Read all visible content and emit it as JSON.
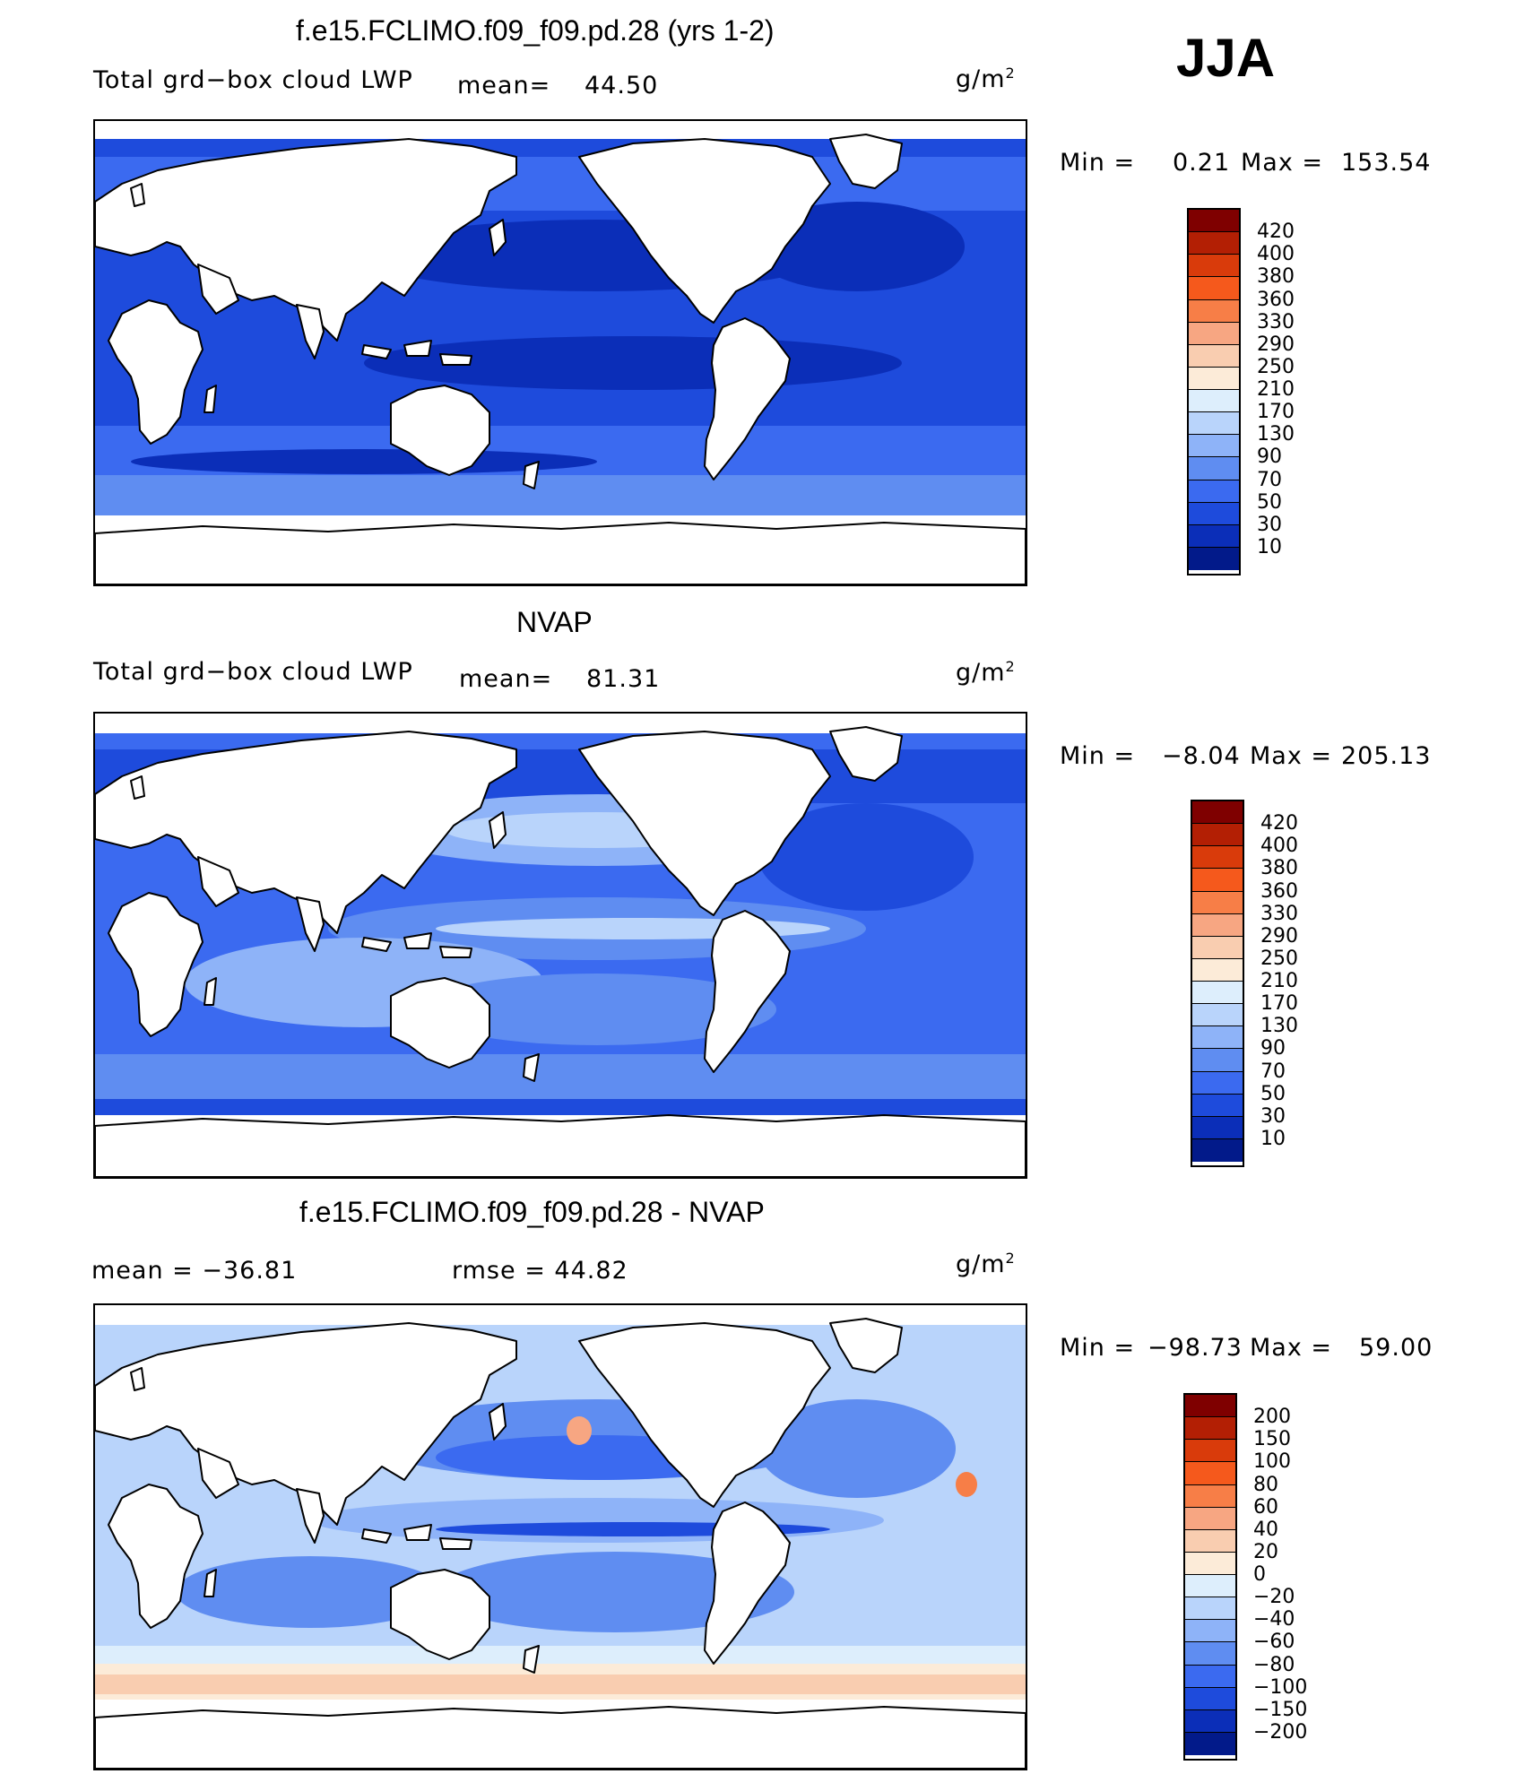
{
  "season": "JJA",
  "panels": [
    {
      "title": "f.e15.FCLIMO.f09_f09.pd.28 (yrs 1-2)",
      "variable": "Total grd−box cloud LWP",
      "mean_label": "mean=",
      "mean_value": "44.50",
      "units": "g/m",
      "units_exp": "2",
      "min_label": "Min =",
      "min_value": "0.21",
      "max_label": "Max =",
      "max_value": "153.54",
      "colorbar": [
        "420",
        "400",
        "380",
        "360",
        "330",
        "290",
        "250",
        "210",
        "170",
        "130",
        "90",
        "70",
        "50",
        "30",
        "10"
      ]
    },
    {
      "title": "NVAP",
      "variable": "Total grd−box cloud LWP",
      "mean_label": "mean=",
      "mean_value": "81.31",
      "units": "g/m",
      "units_exp": "2",
      "min_label": "Min =",
      "min_value": "−8.04",
      "max_label": "Max =",
      "max_value": "205.13",
      "colorbar": [
        "420",
        "400",
        "380",
        "360",
        "330",
        "290",
        "250",
        "210",
        "170",
        "130",
        "90",
        "70",
        "50",
        "30",
        "10"
      ]
    },
    {
      "title": "f.e15.FCLIMO.f09_f09.pd.28 - NVAP",
      "mean_text": "mean = −36.81",
      "rmse_text": "rmse =   44.82",
      "units": "g/m",
      "units_exp": "2",
      "min_label": "Min =",
      "min_value": "−98.73",
      "max_label": "Max =",
      "max_value": "59.00",
      "colorbar": [
        "200",
        "150",
        "100",
        "80",
        "60",
        "40",
        "20",
        "0",
        "−20",
        "−40",
        "−60",
        "−80",
        "−100",
        "−150",
        "−200"
      ]
    }
  ],
  "colors": {
    "scale": [
      "#7f0000",
      "#b31f04",
      "#d93b0b",
      "#f5591c",
      "#f77e47",
      "#f7a682",
      "#f9cdb0",
      "#fcebd8",
      "#ddeefc",
      "#b9d4fb",
      "#8eb3f8",
      "#5f8df1",
      "#3b6af0",
      "#1e4bdc",
      "#0b2eb8",
      "#021a8a"
    ],
    "land": "#ffffff",
    "coast": "#000000"
  }
}
